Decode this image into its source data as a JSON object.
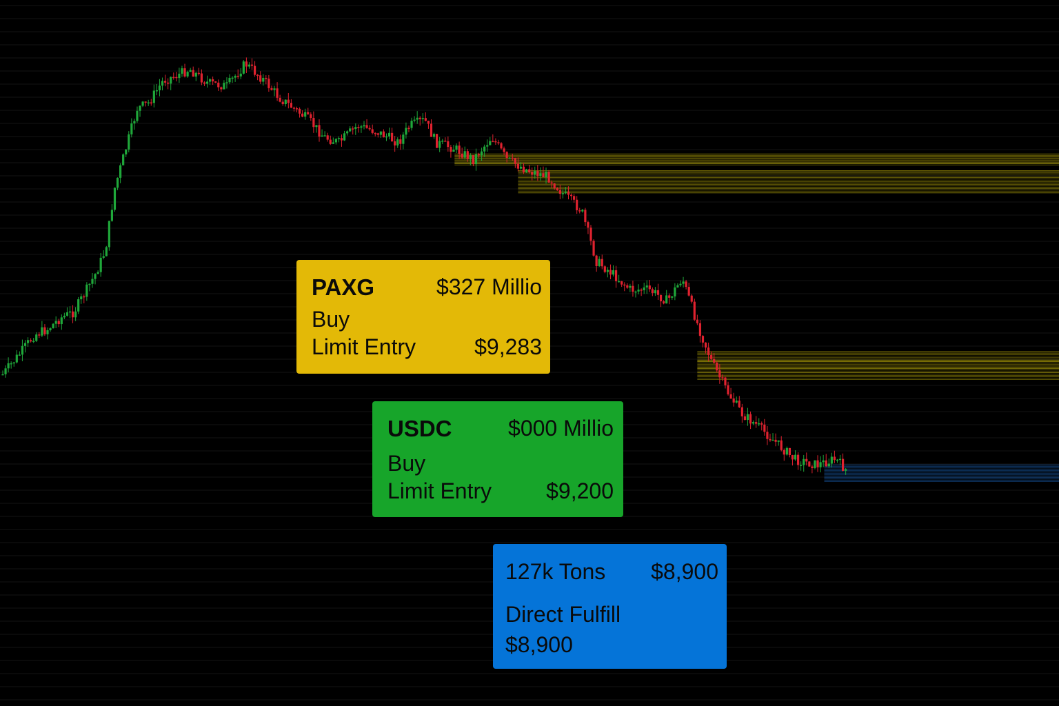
{
  "colors": {
    "background": "#000000",
    "candle_up": "#1fa83a",
    "candle_down": "#e0222f",
    "liquidity_zone": "#d4c20a",
    "fulfill_line": "#1e6fd0",
    "card_paxg": "#e3b907",
    "card_usdc": "#17a52a",
    "card_tons": "#0574d8"
  },
  "orders": {
    "paxg": {
      "asset": "PAXG",
      "amount": "$327 Millio",
      "side": "Buy",
      "type": "Limit Entry",
      "price": "$9,283"
    },
    "usdc": {
      "asset": "USDC",
      "amount": "$000 Millio",
      "side": "Buy",
      "type": "Limit Entry",
      "price": "$9,200"
    },
    "tons": {
      "asset": "127k Tons",
      "amount": "$8,900",
      "type": "Direct Fulfill",
      "price": "$8,900"
    }
  },
  "chart_data": {
    "type": "candlestick",
    "title": "",
    "xlabel": "",
    "ylabel": "",
    "axes_visible": false,
    "grid": false,
    "legend": "none",
    "y_direction": "higher value = higher price",
    "series_close_path": [
      [
        0,
        0.55
      ],
      [
        10,
        0.51
      ],
      [
        17,
        0.48
      ],
      [
        24,
        0.47
      ],
      [
        31,
        0.45
      ],
      [
        38,
        0.44
      ],
      [
        45,
        0.4
      ],
      [
        50,
        0.37
      ],
      [
        55,
        0.33
      ],
      [
        60,
        0.22
      ],
      [
        66,
        0.15
      ],
      [
        72,
        0.08
      ],
      [
        78,
        0.07
      ],
      [
        86,
        0.03
      ],
      [
        94,
        0.02
      ],
      [
        100,
        0.01
      ],
      [
        110,
        0.035
      ],
      [
        120,
        0.04
      ],
      [
        130,
        0.0
      ],
      [
        140,
        0.03
      ],
      [
        148,
        0.06
      ],
      [
        156,
        0.08
      ],
      [
        164,
        0.1
      ],
      [
        172,
        0.13
      ],
      [
        180,
        0.14
      ],
      [
        190,
        0.11
      ],
      [
        200,
        0.12
      ],
      [
        212,
        0.14
      ],
      [
        218,
        0.11
      ],
      [
        226,
        0.1
      ],
      [
        232,
        0.14
      ],
      [
        242,
        0.15
      ],
      [
        252,
        0.17
      ],
      [
        262,
        0.13
      ],
      [
        270,
        0.17
      ],
      [
        282,
        0.19
      ],
      [
        292,
        0.2
      ],
      [
        300,
        0.23
      ],
      [
        310,
        0.26
      ],
      [
        318,
        0.35
      ],
      [
        326,
        0.37
      ],
      [
        336,
        0.4
      ],
      [
        346,
        0.4
      ],
      [
        356,
        0.42
      ],
      [
        364,
        0.38
      ],
      [
        372,
        0.46
      ],
      [
        380,
        0.53
      ],
      [
        388,
        0.58
      ],
      [
        396,
        0.62
      ],
      [
        404,
        0.64
      ],
      [
        414,
        0.67
      ],
      [
        424,
        0.7
      ],
      [
        436,
        0.71
      ],
      [
        446,
        0.7
      ],
      [
        452,
        0.72
      ]
    ],
    "price_zones": [
      {
        "name": "upper liquidity band",
        "from_x": 242,
        "level_high": 0.16,
        "level_low": 0.18
      },
      {
        "name": "main liquidity band",
        "from_x": 276,
        "level_high": 0.19,
        "level_low": 0.23
      },
      {
        "name": "lower liquidity band",
        "from_x": 372,
        "level_high": 0.51,
        "level_low": 0.56
      },
      {
        "name": "fulfill level",
        "from_x": 440,
        "level_high": 0.71,
        "level_low": 0.74
      }
    ]
  }
}
